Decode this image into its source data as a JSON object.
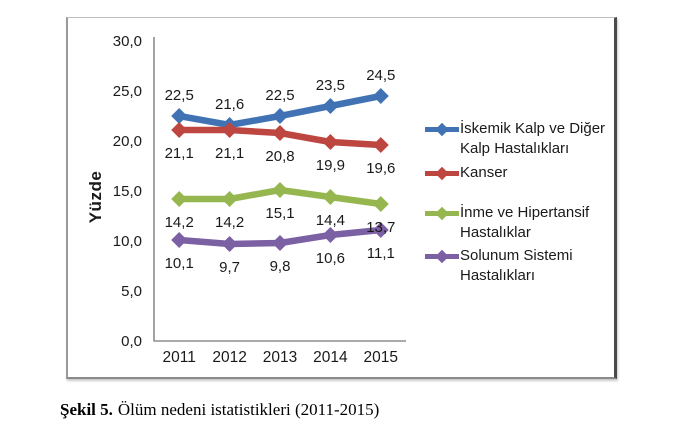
{
  "figure": {
    "caption_prefix": "Şekil 5.",
    "caption_text": "Ölüm nedeni istatistikleri (2011-2015)"
  },
  "chart_data": {
    "type": "line",
    "title": "",
    "xlabel": "",
    "ylabel": "Yüzde",
    "x": [
      "2011",
      "2012",
      "2013",
      "2014",
      "2015"
    ],
    "ylim": [
      0,
      30
    ],
    "grid": false,
    "legend_position": "right",
    "axis_color": "#8E8E8E",
    "text_color": "#1a1a1a",
    "yticks": [
      {
        "value": 0,
        "label": "0,0"
      },
      {
        "value": 5,
        "label": "5,0"
      },
      {
        "value": 10,
        "label": "10,0"
      },
      {
        "value": 15,
        "label": "15,0"
      },
      {
        "value": 20,
        "label": "20,0"
      },
      {
        "value": 25,
        "label": "25,0"
      },
      {
        "value": 30,
        "label": "30,0"
      }
    ],
    "series": [
      {
        "name": "İskemik Kalp ve Diğer Kalp Hastalıkları",
        "color": "#4173B4",
        "values": [
          22.5,
          21.6,
          22.5,
          23.5,
          24.5
        ],
        "labels": [
          "22,5",
          "21,6",
          "22,5",
          "23,5",
          "24,5"
        ],
        "label_position": "above"
      },
      {
        "name": "Kanser",
        "color": "#BE4641",
        "values": [
          21.1,
          21.1,
          20.8,
          19.9,
          19.6
        ],
        "labels": [
          "21,1",
          "21,1",
          "20,8",
          "19,9",
          "19,6"
        ],
        "label_position": "below"
      },
      {
        "name": "İnme ve Hipertansif Hastalıklar",
        "color": "#96B74F",
        "values": [
          14.2,
          14.2,
          15.1,
          14.4,
          13.7
        ],
        "labels": [
          "14,2",
          "14,2",
          "15,1",
          "14,4",
          "13,7"
        ],
        "label_position": "below"
      },
      {
        "name": "Solunum Sistemi Hastalıkları",
        "color": "#7C60A4",
        "values": [
          10.1,
          9.7,
          9.8,
          10.6,
          11.1
        ],
        "labels": [
          "10,1",
          "9,7",
          "9,8",
          "10,6",
          "11,1"
        ],
        "label_position": "below"
      }
    ]
  }
}
